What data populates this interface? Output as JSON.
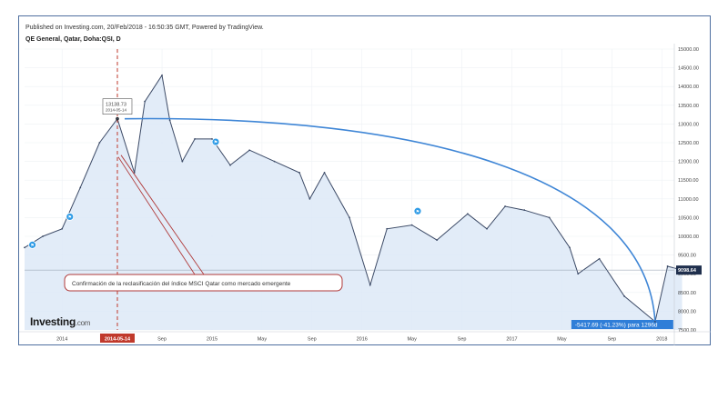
{
  "header": {
    "published": "Published on Investing.com, 20/Feb/2018 - 16:50:35 GMT, Powered by TradingView.",
    "symbol": "QE General, Qatar, Doha:QSI, D"
  },
  "brand": {
    "name": "Investing",
    "suffix": ".com"
  },
  "colors": {
    "line": "#3c4a66",
    "area": "#dde9f7",
    "arc": "#3f86d6",
    "marker": "#c0392b",
    "annotation_border": "#b03a3a",
    "price_tag": "#1f2f4d",
    "delta_tag": "#2f7ed8",
    "event_dot": "#2e9be6"
  },
  "chart_data": {
    "type": "line",
    "title": "QE General, Qatar, Doha:QSI, D",
    "ylim": [
      7500,
      15000
    ],
    "yticks": [
      "15000.00",
      "14500.00",
      "14000.00",
      "13500.00",
      "13000.00",
      "12500.00",
      "12000.00",
      "11500.00",
      "11000.00",
      "10500.00",
      "10000.00",
      "9500.00",
      "9000.00",
      "8500.00",
      "8000.00",
      "7500.00"
    ],
    "xticks": [
      "2014",
      "2014-05-14",
      "Sep",
      "2015",
      "May",
      "Sep",
      "2016",
      "May",
      "Sep",
      "2017",
      "May",
      "Sep",
      "2018"
    ],
    "x_start": "2013-10",
    "x_end": "2018-02",
    "grid": true,
    "series": [
      {
        "x": [
          "2013-10-01",
          "2013-11-15",
          "2014-01-01",
          "2014-02-15",
          "2014-04-01",
          "2014-05-14",
          "2014-06-25",
          "2014-07-20",
          "2014-09-01",
          "2014-09-20",
          "2014-10-20",
          "2014-11-20",
          "2015-01-01",
          "2015-02-15",
          "2015-04-01",
          "2015-06-01",
          "2015-08-01",
          "2015-08-26",
          "2015-10-01",
          "2015-12-01",
          "2016-01-21",
          "2016-03-01",
          "2016-05-01",
          "2016-07-01",
          "2016-09-15",
          "2016-11-01",
          "2016-12-15",
          "2017-02-01",
          "2017-04-01",
          "2017-05-20",
          "2017-06-10",
          "2017-08-01",
          "2017-10-01",
          "2017-12-15",
          "2018-01-15",
          "2018-02-20"
        ],
        "y": [
          9700,
          10000,
          10200,
          11300,
          12500,
          13138.73,
          11700,
          13600,
          14300,
          13100,
          12000,
          12600,
          12600,
          11900,
          12300,
          12000,
          11700,
          11000,
          11700,
          10500,
          8700,
          10200,
          10300,
          9900,
          10600,
          10200,
          10800,
          10700,
          10500,
          9700,
          9000,
          9400,
          8400,
          7721.04,
          9200,
          9098.64
        ]
      }
    ],
    "current_price": "9098.64",
    "crosshair": {
      "date": "2014-05-14",
      "value": "13138.73",
      "date_label": "2014-05-14"
    },
    "measurement": {
      "label": "-5417.69 (-41.23%) para 1296d",
      "from_value": 13138.73,
      "to_value": 7721.04
    },
    "annotation": "Confirmación de la reclasificación del índice MSCI Qatar como mercado emergente",
    "events": [
      {
        "date": "2013-10-20",
        "value": 9700
      },
      {
        "date": "2014-01-20",
        "value": 10450
      },
      {
        "date": "2015-01-10",
        "value": 12450
      },
      {
        "date": "2016-05-15",
        "value": 10600
      }
    ]
  }
}
